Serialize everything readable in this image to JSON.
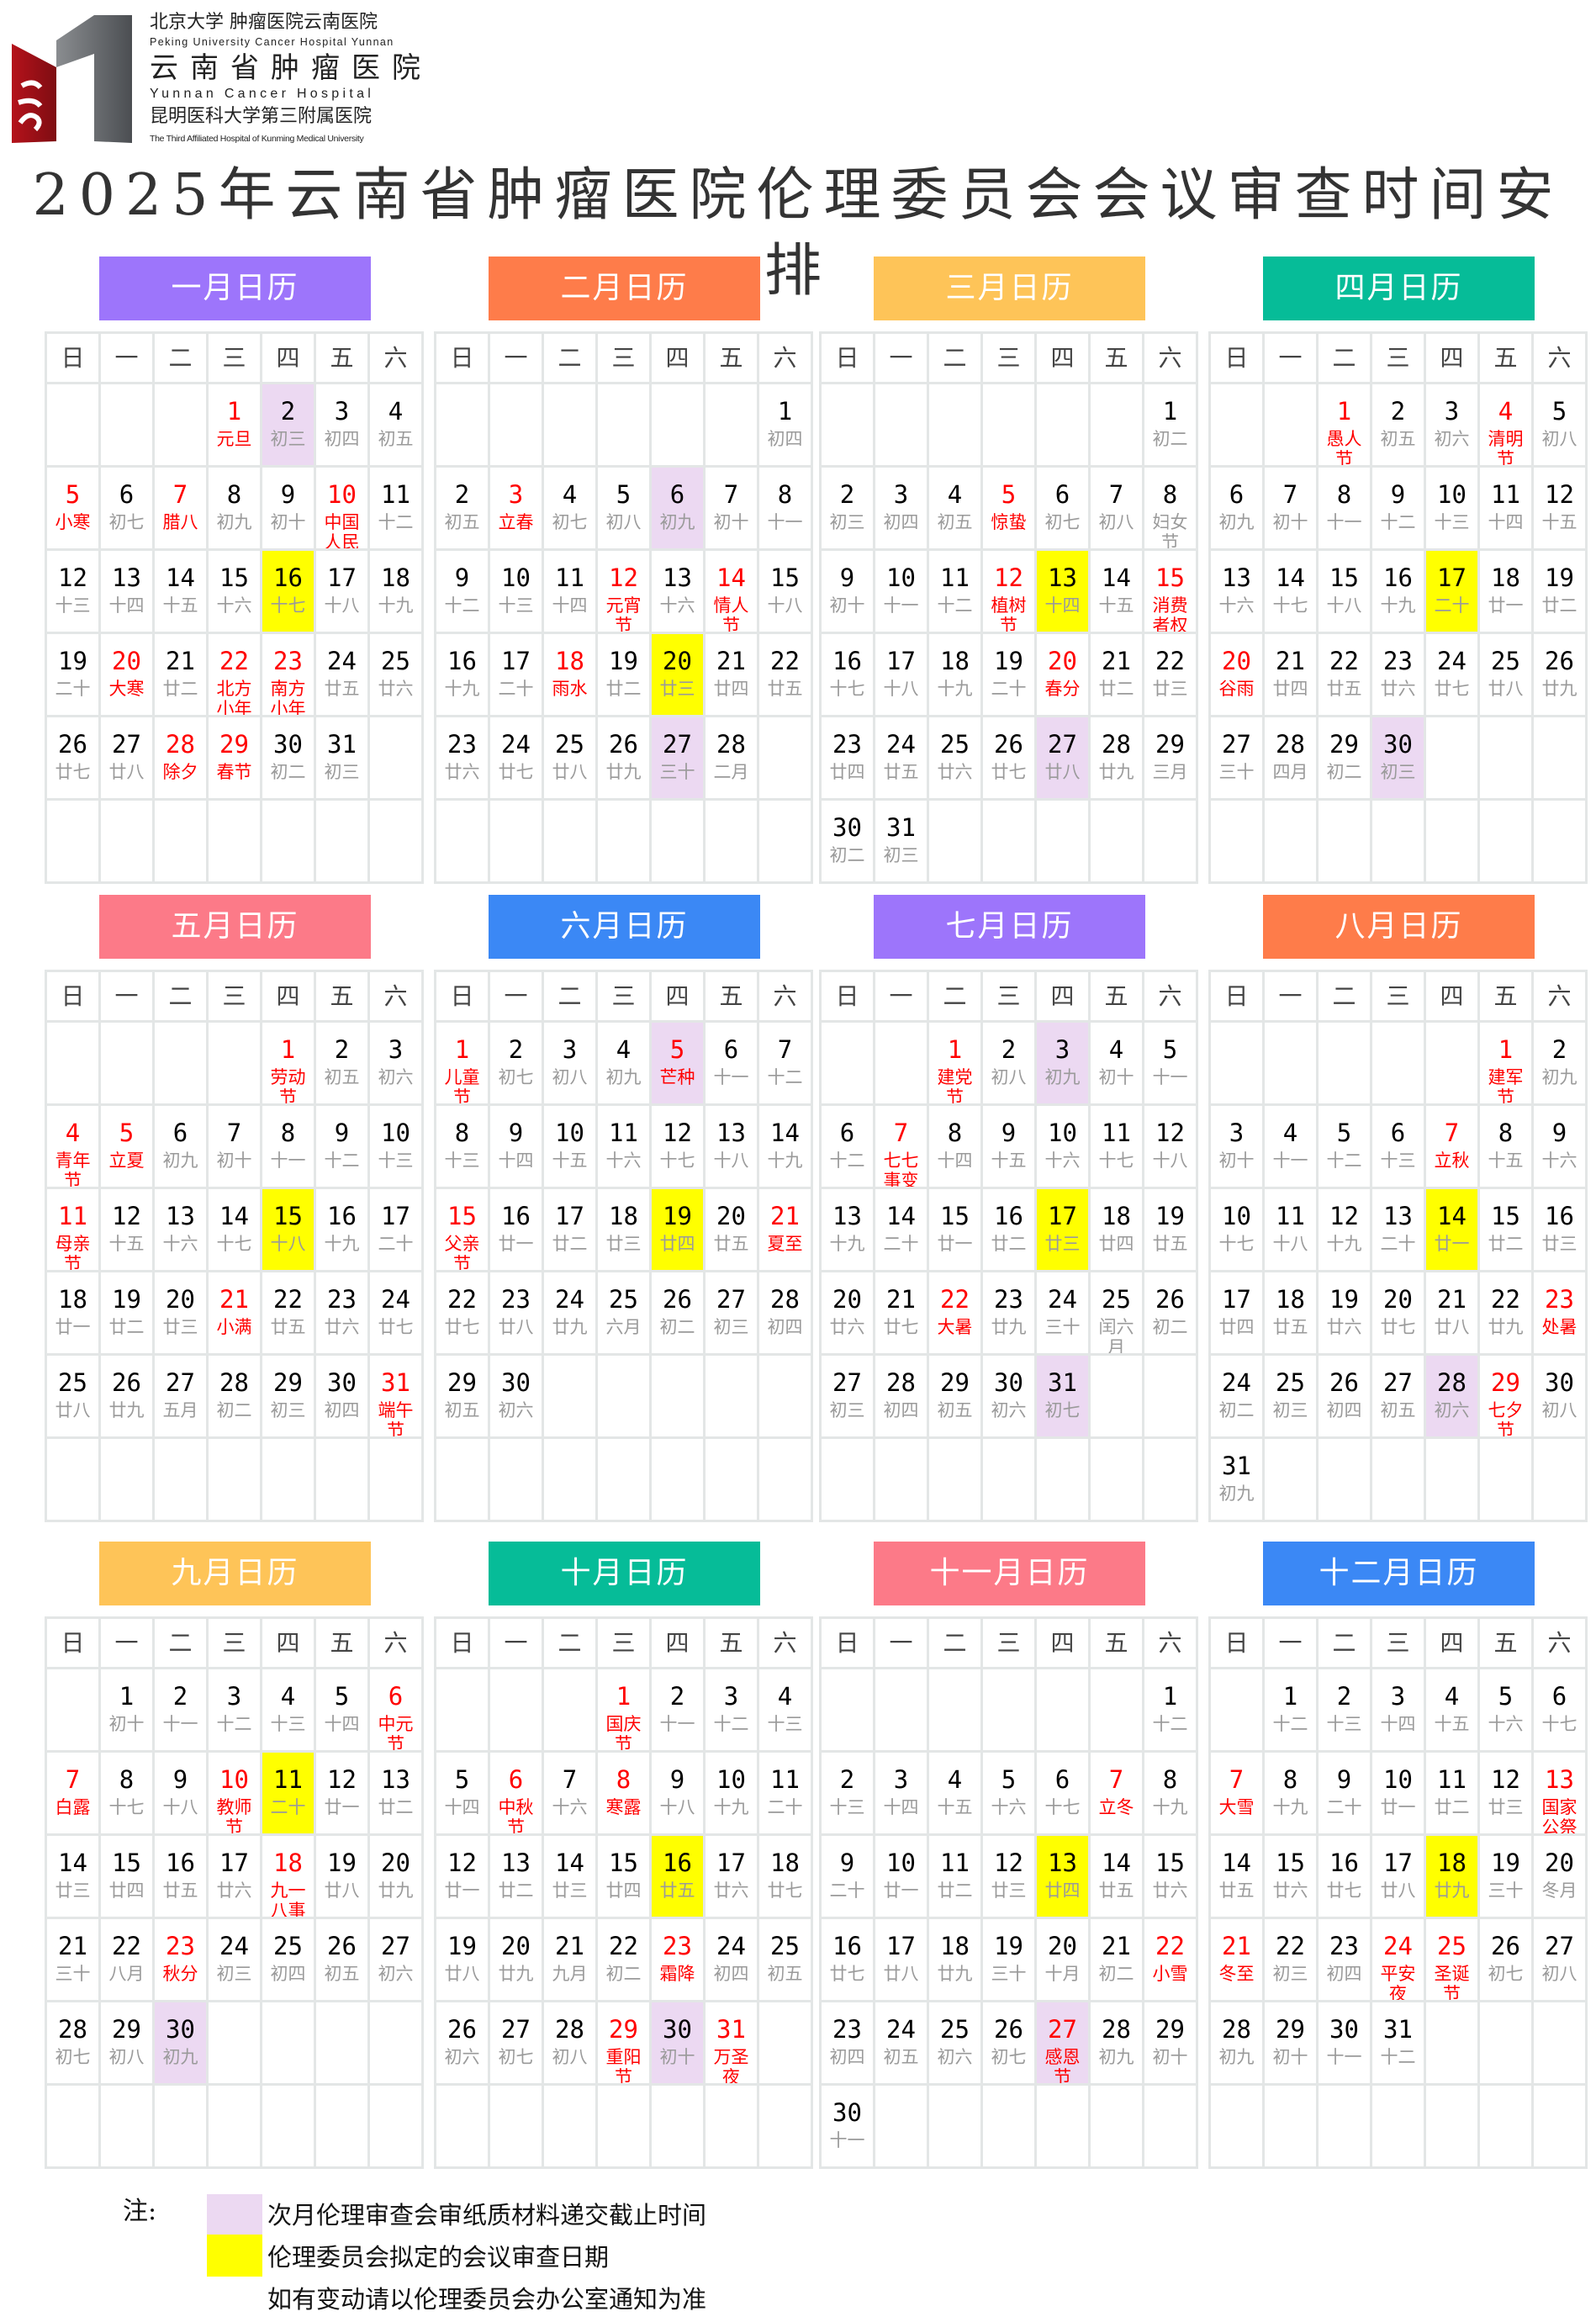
{
  "logo": {
    "line1": "北京大学 肿瘤医院云南医院",
    "line2": "Peking University Cancer Hospital Yunnan",
    "line3": "云南省肿瘤医院",
    "line4": "Yunnan Cancer Hospital",
    "line5": "昆明医科大学第三附属医院",
    "line6": "The Third Affiliated Hospital of Kunming Medical University"
  },
  "title": "2025年云南省肿瘤医院伦理委员会会议审查时间安排",
  "weekdays": [
    "日",
    "一",
    "二",
    "三",
    "四",
    "五",
    "六"
  ],
  "colors": {
    "purple_highlight": "#ecd9f2",
    "yellow_highlight": "#ffff00",
    "festival": "#ff0000",
    "lunar": "#9a9a9a"
  },
  "months": [
    {
      "title": "一月日历",
      "color": "#9d75fb",
      "lunar": [
        "元旦",
        "初三",
        "初四",
        "初五",
        "小寒",
        "初七",
        "腊八",
        "初九",
        "初十",
        "中国人民警察节",
        "十二",
        "十三",
        "十四",
        "十五",
        "十六",
        "十七",
        "十八",
        "十九",
        "二十",
        "大寒",
        "廿二",
        "北方小年",
        "南方小年",
        "廿五",
        "廿六",
        "廿七",
        "廿八",
        "除夕",
        "春节",
        "初二",
        "初三"
      ],
      "red": [
        1,
        5,
        7,
        10,
        20,
        22,
        23,
        28,
        29
      ],
      "purple": [
        2
      ],
      "yellow": [
        16
      ]
    },
    {
      "title": "二月日历",
      "color": "#fe7c4a",
      "lunar": [
        "初四",
        "初五",
        "立春",
        "初七",
        "初八",
        "初九",
        "初十",
        "十一",
        "十二",
        "十三",
        "十四",
        "元宵节",
        "十六",
        "情人节",
        "十八",
        "十九",
        "二十",
        "雨水",
        "廿二",
        "廿三",
        "廿四",
        "廿五",
        "廿六",
        "廿七",
        "廿八",
        "廿九",
        "三十",
        "二月"
      ],
      "red": [
        3,
        12,
        14,
        18
      ],
      "purple": [
        6,
        27
      ],
      "yellow": [
        20
      ]
    },
    {
      "title": "三月日历",
      "color": "#fec458",
      "lunar": [
        "初二",
        "初三",
        "初四",
        "初五",
        "惊蛰",
        "初七",
        "初八",
        "妇女节",
        "初十",
        "十一",
        "十二",
        "植树节",
        "十四",
        "十五",
        "消费者权益日",
        "十七",
        "十八",
        "十九",
        "二十",
        "春分",
        "廿二",
        "廿三",
        "廿四",
        "廿五",
        "廿六",
        "廿七",
        "廿八",
        "廿九",
        "三月",
        "初二",
        "初三"
      ],
      "red": [
        5,
        12,
        15,
        20
      ],
      "purple": [
        27
      ],
      "yellow": [
        13
      ]
    },
    {
      "title": "四月日历",
      "color": "#06bc98",
      "lunar": [
        "愚人节",
        "初五",
        "初六",
        "清明节",
        "初八",
        "初九",
        "初十",
        "十一",
        "十二",
        "十三",
        "十四",
        "十五",
        "十六",
        "十七",
        "十八",
        "十九",
        "二十",
        "廿一",
        "廿二",
        "谷雨",
        "廿四",
        "廿五",
        "廿六",
        "廿七",
        "廿八",
        "廿九",
        "三十",
        "四月",
        "初二",
        "初三"
      ],
      "red": [
        1,
        4,
        20
      ],
      "purple": [
        30
      ],
      "yellow": [
        17
      ]
    },
    {
      "title": "五月日历",
      "color": "#fc7a88",
      "lunar": [
        "劳动节",
        "初五",
        "初六",
        "青年节",
        "立夏",
        "初九",
        "初十",
        "十一",
        "十二",
        "十三",
        "母亲节",
        "十五",
        "十六",
        "十七",
        "十八",
        "十九",
        "二十",
        "廿一",
        "廿二",
        "廿三",
        "小满",
        "廿五",
        "廿六",
        "廿七",
        "廿八",
        "廿九",
        "五月",
        "初二",
        "初三",
        "初四",
        "端午节"
      ],
      "red": [
        1,
        4,
        5,
        11,
        21,
        31
      ],
      "purple": [],
      "yellow": [
        15
      ]
    },
    {
      "title": "六月日历",
      "color": "#3b88f5",
      "lunar": [
        "儿童节",
        "初七",
        "初八",
        "初九",
        "芒种",
        "十一",
        "十二",
        "十三",
        "十四",
        "十五",
        "十六",
        "十七",
        "十八",
        "十九",
        "父亲节",
        "廿一",
        "廿二",
        "廿三",
        "廿四",
        "廿五",
        "夏至",
        "廿七",
        "廿八",
        "廿九",
        "六月",
        "初二",
        "初三",
        "初四",
        "初五",
        "初六"
      ],
      "red": [
        1,
        5,
        15,
        21
      ],
      "purple": [
        5
      ],
      "yellow": [
        19
      ]
    },
    {
      "title": "七月日历",
      "color": "#9d75fb",
      "lunar": [
        "建党节",
        "初八",
        "初九",
        "初十",
        "十一",
        "十二",
        "七七事变",
        "十四",
        "十五",
        "十六",
        "十七",
        "十八",
        "十九",
        "二十",
        "廿一",
        "廿二",
        "廿三",
        "廿四",
        "廿五",
        "廿六",
        "廿七",
        "大暑",
        "廿九",
        "三十",
        "闰六月",
        "初二",
        "初三",
        "初四",
        "初五",
        "初六",
        "初七"
      ],
      "red": [
        1,
        7,
        22
      ],
      "purple": [
        3,
        31
      ],
      "yellow": [
        17
      ]
    },
    {
      "title": "八月日历",
      "color": "#fe7c4a",
      "lunar": [
        "建军节",
        "初九",
        "初十",
        "十一",
        "十二",
        "十三",
        "立秋",
        "十五",
        "十六",
        "十七",
        "十八",
        "十九",
        "二十",
        "廿一",
        "廿二",
        "廿三",
        "廿四",
        "廿五",
        "廿六",
        "廿七",
        "廿八",
        "廿九",
        "处暑",
        "初二",
        "初三",
        "初四",
        "初五",
        "初六",
        "七夕节",
        "初八",
        "初九"
      ],
      "red": [
        1,
        7,
        23,
        29
      ],
      "purple": [
        28
      ],
      "yellow": [
        14
      ]
    },
    {
      "title": "九月日历",
      "color": "#fec458",
      "lunar": [
        "初十",
        "十一",
        "十二",
        "十三",
        "十四",
        "中元节",
        "白露",
        "十七",
        "十八",
        "教师节",
        "二十",
        "廿一",
        "廿二",
        "廿三",
        "廿四",
        "廿五",
        "廿六",
        "九一八事变",
        "廿八",
        "廿九",
        "三十",
        "八月",
        "秋分",
        "初三",
        "初四",
        "初五",
        "初六",
        "初七",
        "初八",
        "初九"
      ],
      "red": [
        6,
        7,
        10,
        18,
        23
      ],
      "purple": [
        30
      ],
      "yellow": [
        11
      ]
    },
    {
      "title": "十月日历",
      "color": "#06bc98",
      "lunar": [
        "国庆节",
        "十一",
        "十二",
        "十三",
        "十四",
        "中秋节",
        "十六",
        "寒露",
        "十八",
        "十九",
        "二十",
        "廿一",
        "廿二",
        "廿三",
        "廿四",
        "廿五",
        "廿六",
        "廿七",
        "廿八",
        "廿九",
        "九月",
        "初二",
        "霜降",
        "初四",
        "初五",
        "初六",
        "初七",
        "初八",
        "重阳节",
        "初十",
        "万圣夜"
      ],
      "red": [
        1,
        6,
        8,
        23,
        29,
        31
      ],
      "purple": [
        30
      ],
      "yellow": [
        16
      ]
    },
    {
      "title": "十一月日历",
      "color": "#fc7a88",
      "lunar": [
        "十二",
        "十三",
        "十四",
        "十五",
        "十六",
        "十七",
        "立冬",
        "十九",
        "二十",
        "廿一",
        "廿二",
        "廿三",
        "廿四",
        "廿五",
        "廿六",
        "廿七",
        "廿八",
        "廿九",
        "三十",
        "十月",
        "初二",
        "小雪",
        "初四",
        "初五",
        "初六",
        "初七",
        "感恩节",
        "初九",
        "初十",
        "十一"
      ],
      "red": [
        7,
        22,
        27
      ],
      "purple": [
        27
      ],
      "yellow": [
        13
      ]
    },
    {
      "title": "十二月日历",
      "color": "#3b88f5",
      "lunar": [
        "十二",
        "十三",
        "十四",
        "十五",
        "十六",
        "十七",
        "大雪",
        "十九",
        "二十",
        "廿一",
        "廿二",
        "廿三",
        "国家公祭日",
        "廿五",
        "廿六",
        "廿七",
        "廿八",
        "廿九",
        "三十",
        "冬月",
        "冬至",
        "初三",
        "初四",
        "平安夜",
        "圣诞节",
        "初七",
        "初八",
        "初九",
        "初十",
        "十一",
        "十二"
      ],
      "red": [
        7,
        13,
        21,
        24,
        25
      ],
      "purple": [],
      "yellow": [
        18
      ]
    }
  ],
  "legend": {
    "note_label": "注:",
    "purple_text": "次月伦理审查会审纸质材料递交截止时间",
    "yellow_text": "伦理委员会拟定的会议审查日期",
    "footer_text": "如有变动请以伦理委员会办公室通知为准"
  }
}
